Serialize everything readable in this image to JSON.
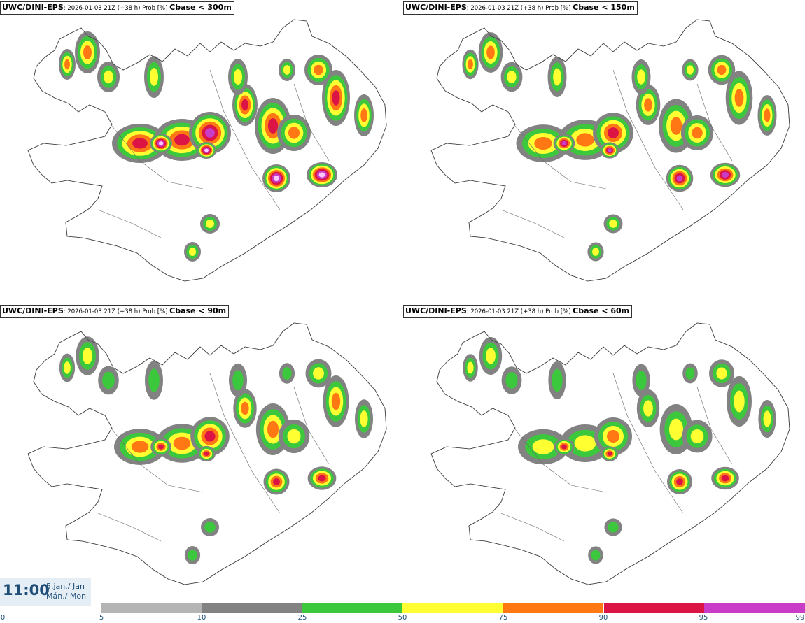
{
  "panels": [
    {
      "id": "p300",
      "model": "UWC/DINI-EPS",
      "run": ": 2026-01-03 21Z (+38 h) Prob [%] ",
      "variable": "Cbase < 300m"
    },
    {
      "id": "p150",
      "model": "UWC/DINI-EPS",
      "run": ": 2026-01-03 21Z (+38 h) Prob [%] ",
      "variable": "Cbase < 150m"
    },
    {
      "id": "p90",
      "model": "UWC/DINI-EPS",
      "run": ": 2026-01-03 21Z (+38 h) Prob [%] ",
      "variable": "Cbase < 90m"
    },
    {
      "id": "p60",
      "model": "UWC/DINI-EPS",
      "run": ": 2026-01-03 21Z (+38 h) Prob [%] ",
      "variable": "Cbase < 60m"
    }
  ],
  "time": {
    "clock": "11:00",
    "date_line1": "5.jan./ Jan",
    "date_line2": "Mán./ Mon"
  },
  "legend": {
    "ticks": [
      "0",
      "5",
      "10",
      "25",
      "50",
      "75",
      "90",
      "95",
      "99"
    ],
    "colors": {
      "c5": "#b4b4b4",
      "c10": "#828282",
      "c25": "#3cc83c",
      "c50": "#ffff32",
      "c75": "#ff7814",
      "c90": "#dc1446",
      "c95": "#c83cc8",
      "c99": "#ffc8ff"
    }
  }
}
